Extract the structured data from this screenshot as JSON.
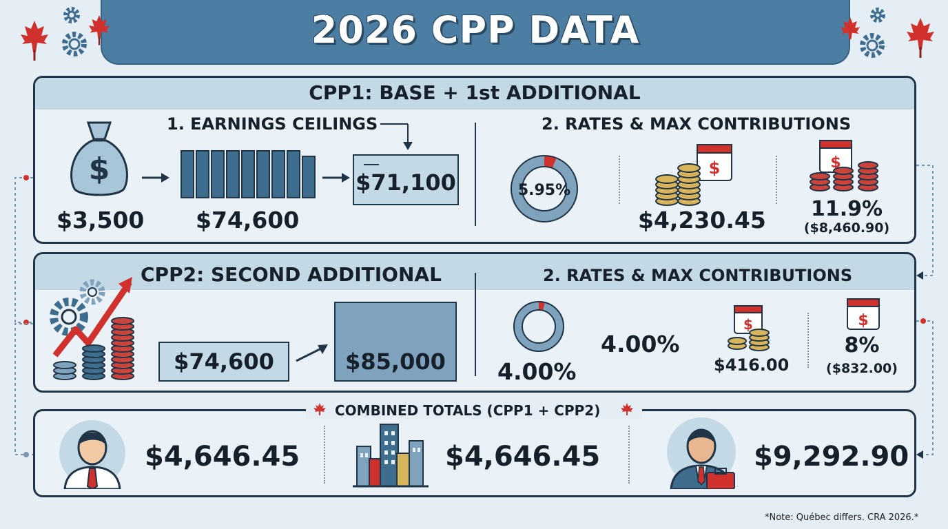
{
  "title": "2026 CPP DATA",
  "cpp1": {
    "heading": "CPP1: BASE + 1st ADDITIONAL",
    "earnings_heading": "1. EARNINGS CEILINGS",
    "basic_exemption": "$3,500",
    "ympe": "$74,600",
    "ceiling_box": "$71,100",
    "rates_heading": "2. RATES & MAX CONTRIBUTIONS",
    "rate": "5.95%",
    "rate_fraction": 0.0595,
    "max_contribution": "$4,230.45",
    "self_employed_rate": "11.9%",
    "self_employed_max": "($8,460.90)"
  },
  "cpp2": {
    "heading": "CPP2: SECOND ADDITIONAL",
    "lower_ceiling": "$74,600",
    "upper_ceiling": "$85,000",
    "rates_heading": "2. RATES & MAX CONTRIBUTIONS",
    "rate_donut_label": "4.00%",
    "rate_fraction": 0.04,
    "rate": "4.00%",
    "max_contribution": "$416.00",
    "self_employed_rate": "8%",
    "self_employed_max": "($832.00)"
  },
  "combined": {
    "heading": "COMBINED TOTALS (CPP1 + CPP2)",
    "employee_total": "$4,646.45",
    "employer_total": "$4,646.45",
    "self_employed_total": "$9,292.90"
  },
  "footer_note": "*Note: Québec differs. CRA 2026.*",
  "icons": [
    "maple-leaf-icon",
    "gear-icon",
    "money-bag-icon",
    "calendar-icon",
    "coin-stack-icon",
    "growth-arrow-icon",
    "employee-icon",
    "city-icon",
    "self-employed-icon"
  ],
  "colors": {
    "banner": "#4b7ea2",
    "panel_head": "#c3d9e6",
    "bar": "#3f6d8e",
    "accent_red": "#d0312d",
    "donut_blue": "#7fa3bd",
    "coin_gold": "#d8b45a"
  }
}
